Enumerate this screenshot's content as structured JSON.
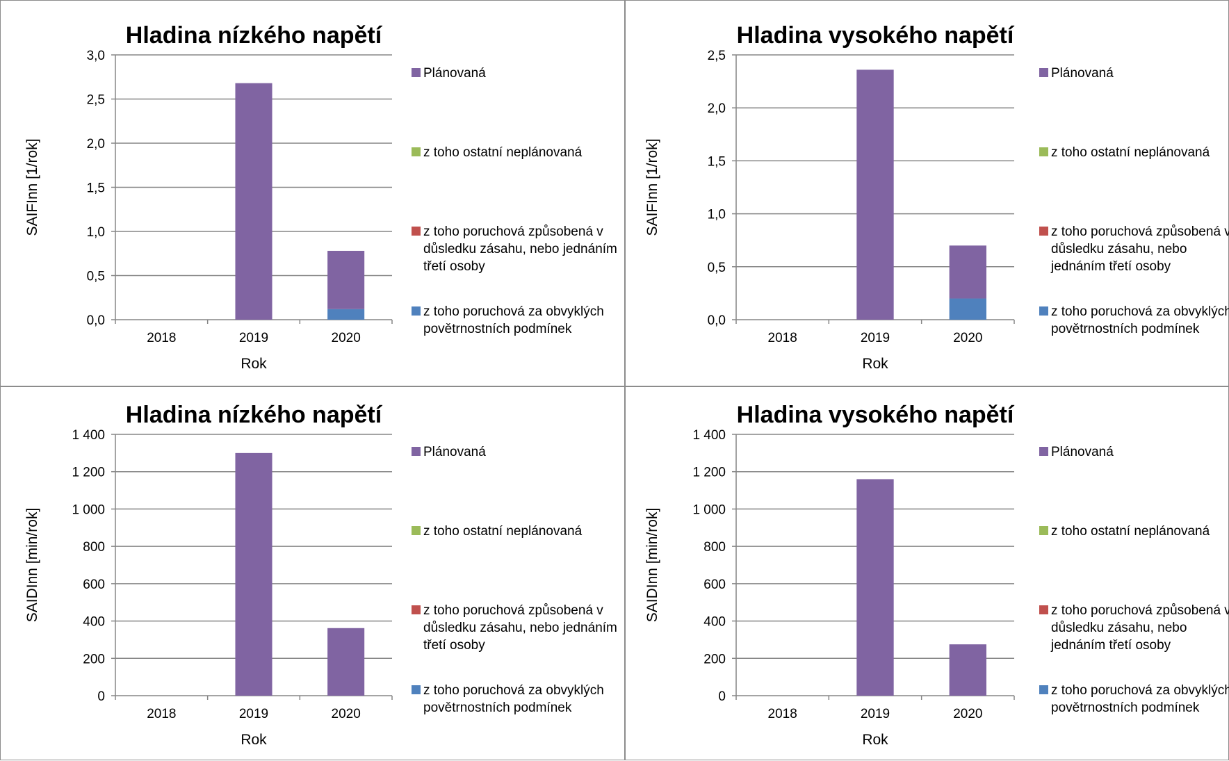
{
  "chart_data": [
    {
      "type": "bar",
      "stacked": true,
      "title": "Hladina nízkého napětí",
      "xlabel": "Rok",
      "ylabel": "SAIFInn [1/rok]",
      "categories": [
        "2018",
        "2019",
        "2020"
      ],
      "ylim": [
        0,
        3
      ],
      "yticks": [
        "0,0",
        "0,5",
        "1,0",
        "1,5",
        "2,0",
        "2,5",
        "3,0"
      ],
      "grid": true,
      "legend_position": "right",
      "series": [
        {
          "name": "z toho poruchová za obvyklých povětrnostních podmínek",
          "color": "#4f81bd",
          "values": [
            0,
            0,
            0.12
          ]
        },
        {
          "name": "z toho poruchová způsobená v důsledku zásahu, nebo jednáním třetí osoby",
          "color": "#c0504d",
          "values": [
            0,
            0,
            0
          ]
        },
        {
          "name": "z toho ostatní neplánovaná",
          "color": "#9bbb59",
          "values": [
            0,
            0,
            0
          ]
        },
        {
          "name": "Plánovaná",
          "color": "#8064a2",
          "values": [
            0,
            2.68,
            0.66
          ]
        }
      ]
    },
    {
      "type": "bar",
      "stacked": true,
      "title": "Hladina vysokého napětí",
      "xlabel": "Rok",
      "ylabel": "SAIFInn [1/rok]",
      "categories": [
        "2018",
        "2019",
        "2020"
      ],
      "ylim": [
        0,
        2.5
      ],
      "yticks": [
        "0,0",
        "0,5",
        "1,0",
        "1,5",
        "2,0",
        "2,5"
      ],
      "grid": true,
      "legend_position": "right",
      "series": [
        {
          "name": "z toho poruchová za obvyklých povětrnostních podmínek",
          "color": "#4f81bd",
          "values": [
            0,
            0,
            0.2
          ]
        },
        {
          "name": "z toho poruchová způsobená v důsledku zásahu, nebo jednáním třetí osoby",
          "color": "#c0504d",
          "values": [
            0,
            0,
            0
          ]
        },
        {
          "name": "z toho ostatní neplánovaná",
          "color": "#9bbb59",
          "values": [
            0,
            0,
            0
          ]
        },
        {
          "name": "Plánovaná",
          "color": "#8064a2",
          "values": [
            0,
            2.36,
            0.5
          ]
        }
      ]
    },
    {
      "type": "bar",
      "stacked": true,
      "title": "Hladina nízkého napětí",
      "xlabel": "Rok",
      "ylabel": "SAIDInn [min/rok]",
      "categories": [
        "2018",
        "2019",
        "2020"
      ],
      "ylim": [
        0,
        1400
      ],
      "yticks": [
        "0",
        "200",
        "400",
        "600",
        "800",
        "1 000",
        "1 200",
        "1 400"
      ],
      "grid": true,
      "legend_position": "right",
      "series": [
        {
          "name": "z toho poruchová za obvyklých povětrnostních podmínek",
          "color": "#4f81bd",
          "values": [
            0,
            0,
            0
          ]
        },
        {
          "name": "z toho poruchová způsobená v důsledku zásahu, nebo jednáním třetí osoby",
          "color": "#c0504d",
          "values": [
            0,
            0,
            0
          ]
        },
        {
          "name": "z toho ostatní neplánovaná",
          "color": "#9bbb59",
          "values": [
            0,
            0,
            0
          ]
        },
        {
          "name": "Plánovaná",
          "color": "#8064a2",
          "values": [
            0,
            1300,
            362
          ]
        }
      ]
    },
    {
      "type": "bar",
      "stacked": true,
      "title": "Hladina vysokého napětí",
      "xlabel": "Rok",
      "ylabel": "SAIDInn [min/rok]",
      "categories": [
        "2018",
        "2019",
        "2020"
      ],
      "ylim": [
        0,
        1400
      ],
      "yticks": [
        "0",
        "200",
        "400",
        "600",
        "800",
        "1 000",
        "1 200",
        "1 400"
      ],
      "grid": true,
      "legend_position": "right",
      "series": [
        {
          "name": "z toho poruchová za obvyklých povětrnostních podmínek",
          "color": "#4f81bd",
          "values": [
            0,
            0,
            0
          ]
        },
        {
          "name": "z toho poruchová způsobená v důsledku zásahu, nebo jednáním třetí osoby",
          "color": "#c0504d",
          "values": [
            0,
            0,
            0
          ]
        },
        {
          "name": "z toho ostatní neplánovaná",
          "color": "#9bbb59",
          "values": [
            0,
            0,
            0
          ]
        },
        {
          "name": "Plánovaná",
          "color": "#8064a2",
          "values": [
            0,
            1160,
            275
          ]
        }
      ]
    }
  ],
  "legend_order": [
    "Plánovaná",
    "z toho ostatní neplánovaná",
    "z toho poruchová způsobená v důsledku zásahu, nebo jednáním třetí osoby",
    "z toho poruchová za obvyklých povětrnostních podmínek"
  ],
  "legend_lines": {
    "left": [
      [
        "Plánovaná"
      ],
      [
        "z toho ostatní neplánovaná"
      ],
      [
        "z toho poruchová způsobená v",
        "důsledku zásahu, nebo jednáním",
        "třetí osoby"
      ],
      [
        "z toho poruchová za obvyklých",
        "povětrnostních podmínek"
      ]
    ],
    "right": [
      [
        "Plánovaná"
      ],
      [
        "z toho ostatní neplánovaná"
      ],
      [
        "z toho poruchová způsobená v",
        "důsledku zásahu, nebo",
        "jednáním třetí osoby"
      ],
      [
        "z toho poruchová za obvyklých",
        "povětrnostních podmínek"
      ]
    ]
  },
  "colors": {
    "grid": "#868686",
    "axis": "#868686",
    "border": "#8c8c8c"
  }
}
